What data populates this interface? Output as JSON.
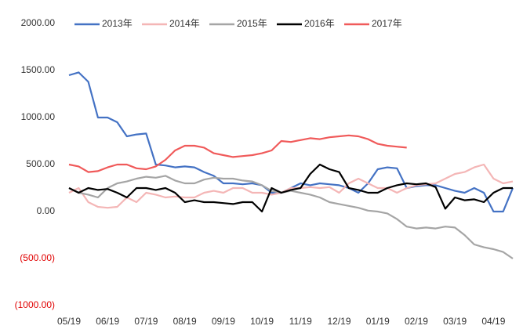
{
  "chart_data": {
    "type": "line",
    "categories": [
      "05/19",
      null,
      null,
      null,
      "06/19",
      null,
      null,
      null,
      "07/19",
      null,
      null,
      null,
      "08/19",
      null,
      null,
      null,
      "09/19",
      null,
      null,
      null,
      "10/19",
      null,
      null,
      null,
      "11/19",
      null,
      null,
      null,
      "12/19",
      null,
      null,
      null,
      "01/19",
      null,
      null,
      null,
      "02/19",
      null,
      null,
      null,
      "03/19",
      null,
      null,
      null,
      "04/19",
      null,
      null
    ],
    "ylim": [
      -1000,
      2000
    ],
    "yticks": [
      {
        "value": -1000,
        "label": "(1000.00)"
      },
      {
        "value": -500,
        "label": "(500.00)"
      },
      {
        "value": 0,
        "label": "0.00"
      },
      {
        "value": 500,
        "label": "500.00"
      },
      {
        "value": 1000,
        "label": "1000.00"
      },
      {
        "value": 1500,
        "label": "1500.00"
      },
      {
        "value": 2000,
        "label": "2000.00"
      }
    ],
    "grid": false,
    "legend": "top",
    "series": [
      {
        "name": "2013年",
        "color": "#4472c4",
        "values": [
          1450,
          1480,
          1380,
          1000,
          1000,
          950,
          800,
          820,
          830,
          500,
          490,
          470,
          480,
          470,
          420,
          380,
          300,
          300,
          290,
          300,
          280,
          200,
          200,
          250,
          300,
          280,
          300,
          290,
          280,
          250,
          200,
          300,
          450,
          470,
          460,
          250,
          270,
          280,
          280,
          250,
          220,
          200,
          250,
          200,
          0,
          0,
          250
        ]
      },
      {
        "name": "2014年",
        "color": "#f4b6b6",
        "values": [
          200,
          250,
          100,
          50,
          40,
          50,
          150,
          100,
          200,
          180,
          150,
          160,
          150,
          150,
          200,
          220,
          200,
          250,
          250,
          200,
          200,
          180,
          200,
          250,
          250,
          260,
          250,
          260,
          200,
          300,
          350,
          300,
          250,
          250,
          200,
          250,
          280,
          290,
          300,
          350,
          400,
          420,
          470,
          500,
          350,
          300,
          320
        ]
      },
      {
        "name": "2015年",
        "color": "#a5a5a5",
        "values": [
          250,
          200,
          180,
          150,
          250,
          300,
          320,
          350,
          370,
          360,
          380,
          330,
          300,
          300,
          340,
          360,
          350,
          350,
          330,
          320,
          280,
          220,
          200,
          220,
          200,
          180,
          150,
          100,
          80,
          60,
          40,
          10,
          0,
          -20,
          -80,
          -160,
          -180,
          -170,
          -180,
          -160,
          -170,
          -250,
          -350,
          -380,
          -400,
          -430,
          -500
        ]
      },
      {
        "name": "2016年",
        "color": "#000000",
        "values": [
          250,
          200,
          250,
          230,
          240,
          200,
          150,
          250,
          250,
          230,
          250,
          200,
          100,
          120,
          100,
          100,
          90,
          80,
          100,
          100,
          0,
          250,
          200,
          230,
          250,
          400,
          500,
          450,
          420,
          250,
          230,
          200,
          200,
          250,
          280,
          300,
          290,
          300,
          260,
          30,
          150,
          120,
          130,
          100,
          200,
          250,
          250
        ]
      },
      {
        "name": "2017年",
        "color": "#f05a5a",
        "values": [
          500,
          480,
          420,
          430,
          470,
          500,
          500,
          460,
          450,
          480,
          550,
          650,
          700,
          700,
          680,
          620,
          600,
          580,
          590,
          600,
          620,
          650,
          750,
          740,
          760,
          780,
          770,
          790,
          800,
          810,
          800,
          770,
          720,
          700,
          690,
          680,
          null,
          null,
          null,
          null,
          null,
          null,
          null,
          null,
          null,
          null,
          null
        ]
      }
    ]
  }
}
